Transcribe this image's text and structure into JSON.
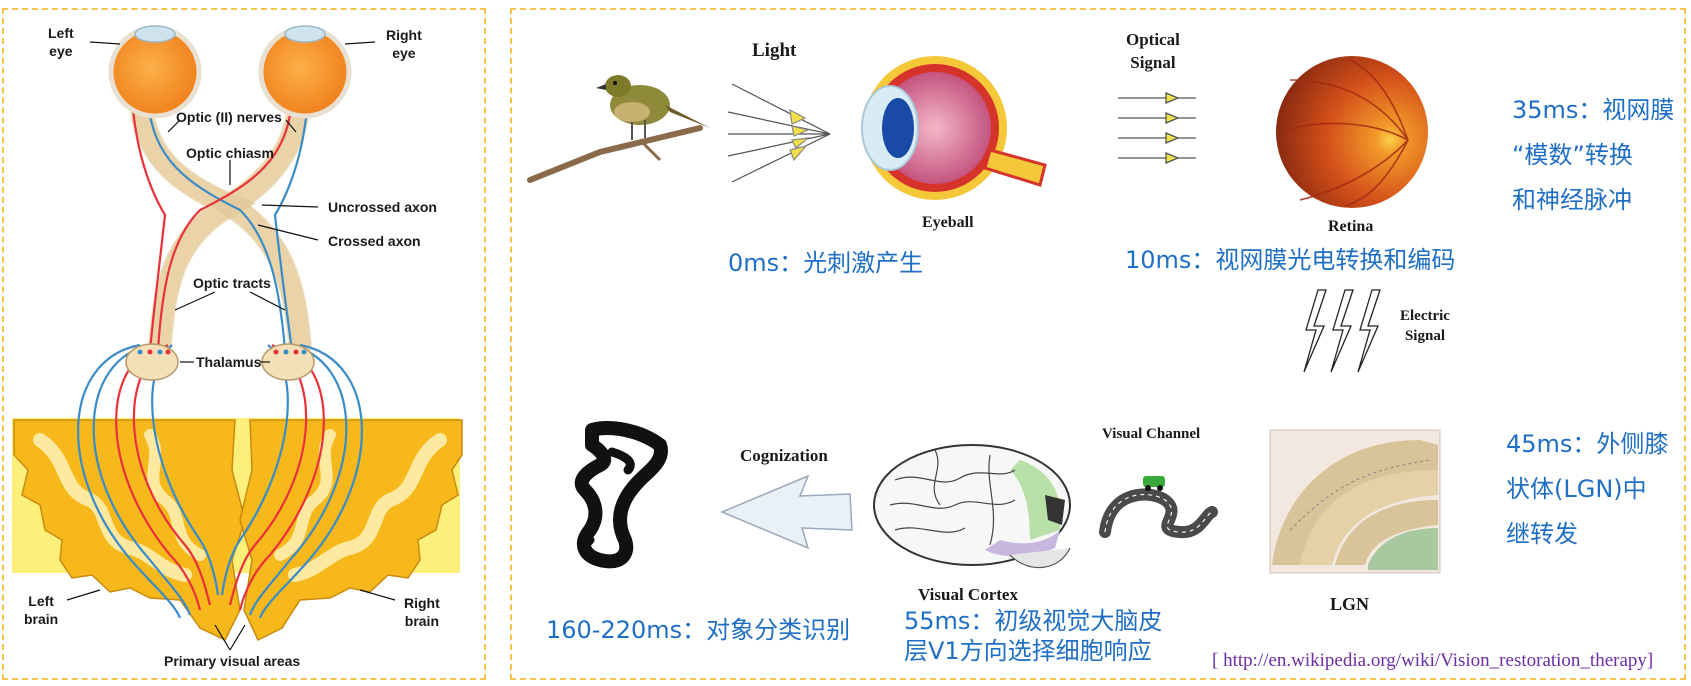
{
  "anatomy": {
    "left_eye": "Left\neye",
    "right_eye": "Right\neye",
    "optic_nerves": "Optic (II) nerves",
    "optic_chiasm": "Optic chiasm",
    "uncrossed_axon": "Uncrossed axon",
    "crossed_axon": "Crossed axon",
    "optic_tracts": "Optic tracts",
    "thalamus": "Thalamus",
    "left_brain": "Left\nbrain",
    "right_brain": "Right\nbrain",
    "primary_visual_areas": "Primary visual areas"
  },
  "pipeline": {
    "light": "Light",
    "eyeball": "Eyeball",
    "optical_signal": "Optical\nSignal",
    "retina": "Retina",
    "electric_signal": "Electric\nSignal",
    "lgn": "LGN",
    "visual_channel": "Visual Channel",
    "visual_cortex": "Visual Cortex",
    "cognization": "Cognization"
  },
  "timeline": {
    "t0": "0ms：光刺激产生",
    "t10": "10ms：视网膜光电转换和编码",
    "t35": "35ms：视网膜\n“模数”转换\n和神经脉冲",
    "t45": "45ms：外侧膝\n状体(LGN)中\n继转发",
    "t55": "55ms：初级视觉大脑皮\n层V1方向选择细胞响应",
    "t160": "160-220ms：对象分类识别"
  },
  "source": "[ http://en.wikipedia.org/wiki/Vision_restoration_therapy]",
  "colors": {
    "border": "#f3c64a",
    "label_blue": "#1f6fc5",
    "link_purple": "#6b2da8",
    "eye_orange": "#f79a2e",
    "brain_yellow": "#fdf07a",
    "brain_orange": "#f6b81a",
    "axon_red": "#e8313a",
    "axon_blue": "#3a8cc8"
  }
}
